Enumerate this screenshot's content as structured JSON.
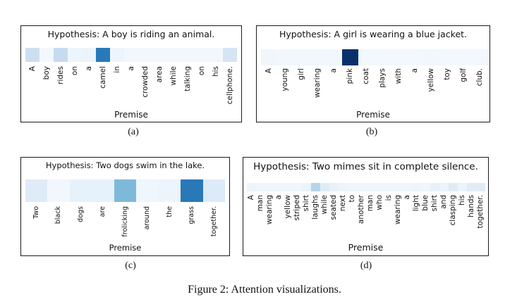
{
  "figure": {
    "caption": "Figure 2: Attention visualizations.",
    "colormap": "Blues"
  },
  "panels": [
    {
      "id": "a",
      "sublabel": "(a)",
      "hypothesis": "Hypothesis: A boy is riding an animal.",
      "premise_label": "Premise",
      "words": [
        "A",
        "boy",
        "rides",
        "on",
        "a",
        "camel",
        "in",
        "a",
        "crowded",
        "area",
        "while",
        "talking",
        "on",
        "his",
        "cellphone."
      ],
      "weights": [
        0.22,
        0.02,
        0.25,
        0.05,
        0.06,
        0.72,
        0.05,
        0.03,
        0.03,
        0.03,
        0.03,
        0.03,
        0.03,
        0.03,
        0.17
      ]
    },
    {
      "id": "b",
      "sublabel": "(b)",
      "hypothesis": "Hypothesis: A girl is wearing a blue jacket.",
      "premise_label": "Premise",
      "words": [
        "A",
        "young",
        "girl",
        "wearing",
        "a",
        "pink",
        "coat",
        "plays",
        "with",
        "a",
        "yellow",
        "toy",
        "golf",
        "club."
      ],
      "weights": [
        0.04,
        0.03,
        0.03,
        0.03,
        0.03,
        1.0,
        0.02,
        0.02,
        0.02,
        0.02,
        0.03,
        0.02,
        0.02,
        0.02
      ]
    },
    {
      "id": "c",
      "sublabel": "(c)",
      "hypothesis": "Hypothesis: Two dogs swim in the lake.",
      "premise_label": "Premise",
      "words": [
        "Two",
        "black",
        "dogs",
        "are",
        "frolicking",
        "around",
        "the",
        "grass",
        "together."
      ],
      "weights": [
        0.12,
        0.03,
        0.08,
        0.08,
        0.45,
        0.04,
        0.05,
        0.72,
        0.13
      ]
    },
    {
      "id": "d",
      "sublabel": "(d)",
      "hypothesis": "Hypothesis: Two mimes sit in complete silence.",
      "premise_label": "Premise",
      "words": [
        "A",
        "man",
        "wearing",
        "a",
        "yellow",
        "striped",
        "shirt",
        "laughs",
        "while",
        "seated",
        "next",
        "to",
        "another",
        "man",
        "who",
        "is",
        "wearing",
        "a",
        "light",
        "blue",
        "shirt",
        "and",
        "clasping",
        "his",
        "hands",
        "together."
      ],
      "weights": [
        0.05,
        0.04,
        0.04,
        0.04,
        0.04,
        0.04,
        0.06,
        0.3,
        0.12,
        0.08,
        0.05,
        0.04,
        0.04,
        0.04,
        0.04,
        0.04,
        0.04,
        0.04,
        0.05,
        0.04,
        0.08,
        0.06,
        0.12,
        0.06,
        0.12,
        0.12
      ]
    }
  ]
}
